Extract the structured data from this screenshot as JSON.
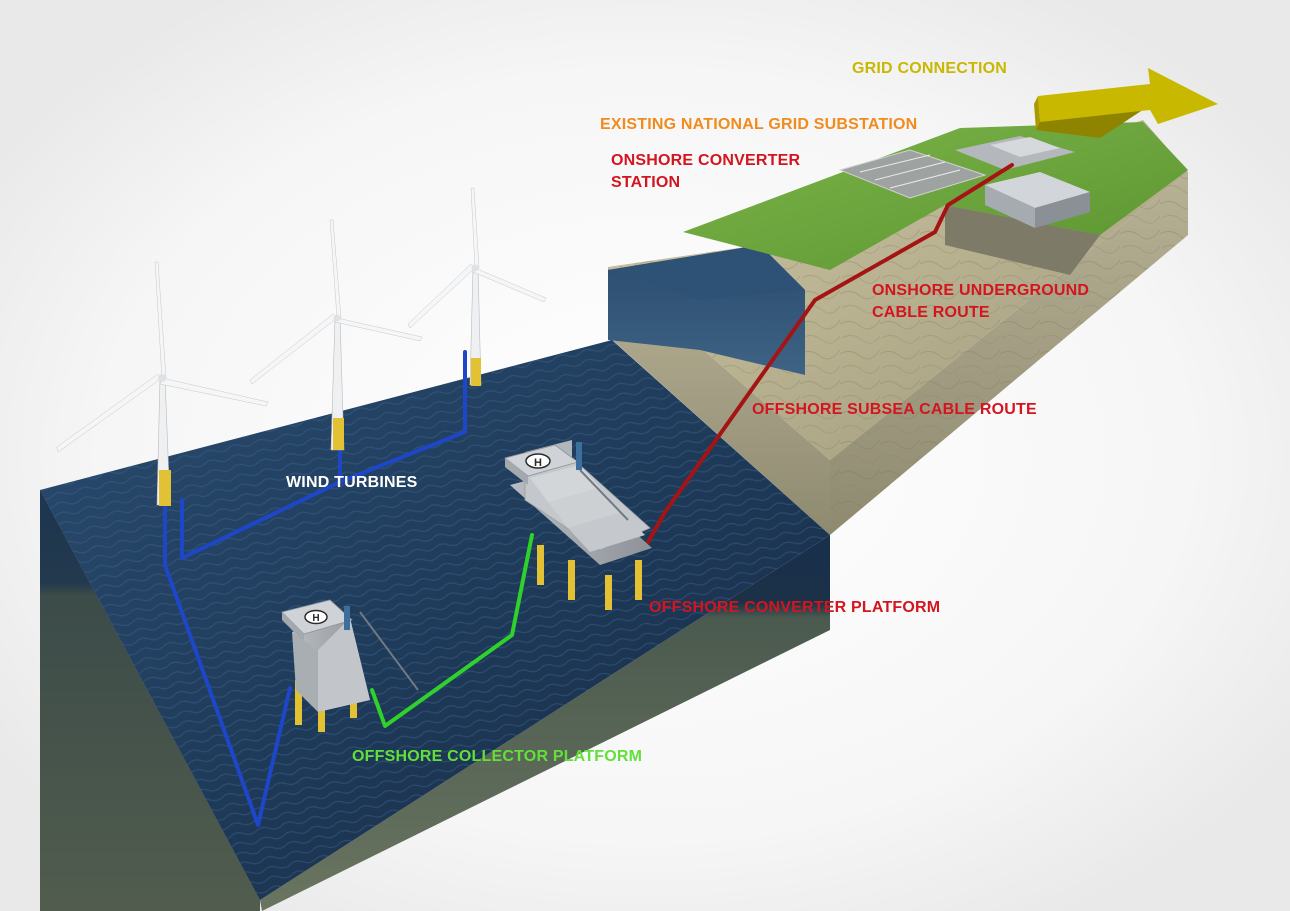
{
  "colors": {
    "grid_connection": "#c9b800",
    "substation": "#f08c1e",
    "red_label": "#d4141e",
    "red_cable": "#a51414",
    "green_cable": "#2fd22a",
    "blue_cable": "#1e46c8",
    "turbine_label": "#ffffff",
    "collector_label": "#62e03a",
    "sea": "#1d3d5e",
    "grass": "#6aa83a"
  },
  "labels": {
    "grid_connection": "GRID CONNECTION",
    "existing_substation": "EXISTING NATIONAL GRID SUBSTATION",
    "onshore_converter_line1": "ONSHORE CONVERTER",
    "onshore_converter_line2": "STATION",
    "onshore_cable_line1": "ONSHORE UNDERGROUND",
    "onshore_cable_line2": "CABLE ROUTE",
    "offshore_subsea": "OFFSHORE SUBSEA CABLE ROUTE",
    "wind_turbines": "WIND TURBINES",
    "offshore_converter_platform": "OFFSHORE CONVERTER PLATFORM",
    "offshore_collector_platform": "OFFSHORE COLLECTOR PLATFORM"
  },
  "icons": {
    "helipad": "H"
  }
}
